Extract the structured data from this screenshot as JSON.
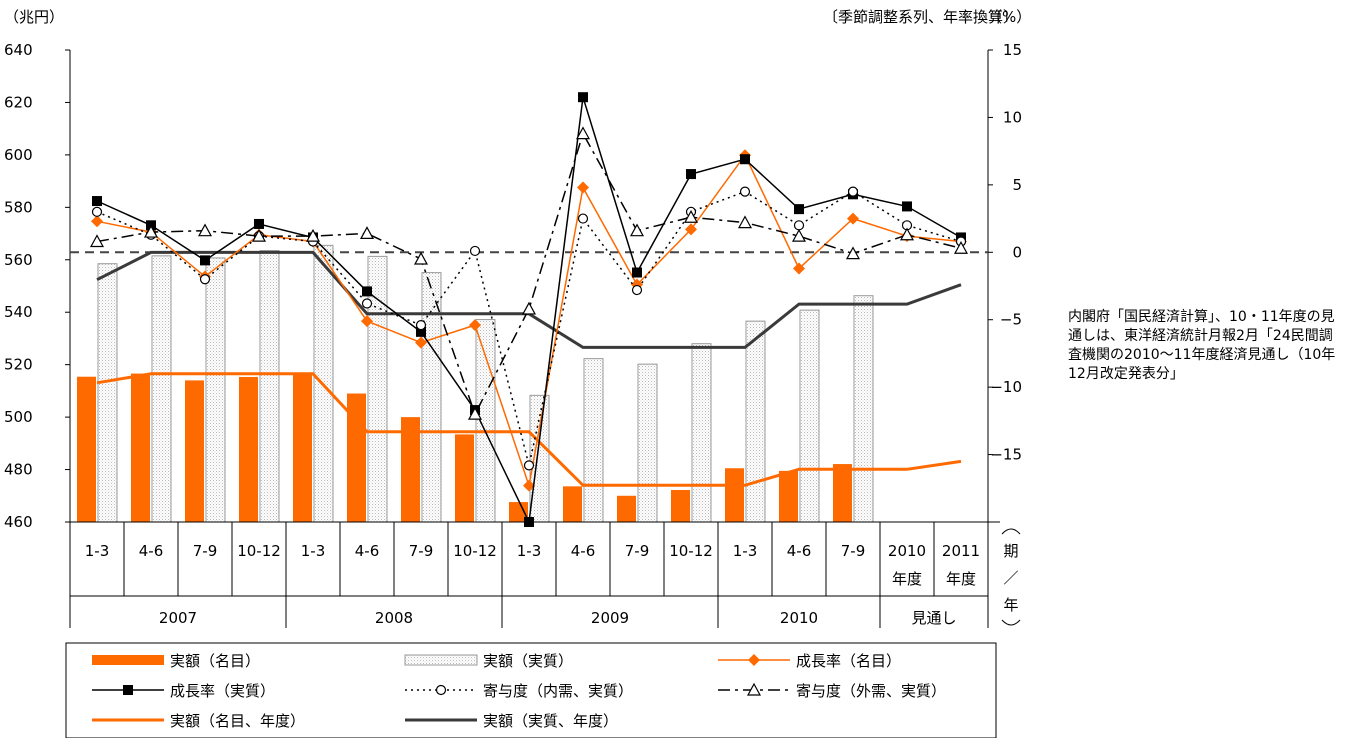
{
  "chart_data": {
    "type": "bar",
    "unit_left": "（兆円）",
    "unit_right": "（%）",
    "subtitle": "〔季節調整系列、年率換算〕",
    "y_left": {
      "min": 460,
      "max": 640,
      "step": 20
    },
    "y_right": {
      "min": -20,
      "max": 15,
      "step": 5,
      "label_min": -15
    },
    "periods": [
      {
        "label": "1-3",
        "year": "2007"
      },
      {
        "label": "4-6",
        "year": "2007"
      },
      {
        "label": "7-9",
        "year": "2007"
      },
      {
        "label": "10-12",
        "year": "2007"
      },
      {
        "label": "1-3",
        "year": "2008"
      },
      {
        "label": "4-6",
        "year": "2008"
      },
      {
        "label": "7-9",
        "year": "2008"
      },
      {
        "label": "10-12",
        "year": "2008"
      },
      {
        "label": "1-3",
        "year": "2009"
      },
      {
        "label": "4-6",
        "year": "2009"
      },
      {
        "label": "7-9",
        "year": "2009"
      },
      {
        "label": "10-12",
        "year": "2009"
      },
      {
        "label": "1-3",
        "year": "2010"
      },
      {
        "label": "4-6",
        "year": "2010"
      },
      {
        "label": "7-9",
        "year": "2010"
      },
      {
        "label": "2010\n年度",
        "year": "見通し"
      },
      {
        "label": "2011\n年度",
        "year": "見通し"
      }
    ],
    "year_groups": [
      {
        "label": "2007",
        "span": 4
      },
      {
        "label": "2008",
        "span": 4
      },
      {
        "label": "2009",
        "span": 4
      },
      {
        "label": "2010",
        "span": 3
      },
      {
        "label": "見通し",
        "span": 2
      }
    ],
    "axis_corner_label": "期／年",
    "series": [
      {
        "name": "実額（名目）",
        "kind": "bar",
        "axis": "left",
        "color": "#FF6A00",
        "values": [
          515.4,
          516.6,
          514.0,
          515.3,
          516.2,
          509.0,
          500.0,
          493.4,
          467.6,
          473.6,
          470.0,
          472.2,
          480.5,
          479.5,
          482.1,
          null,
          null
        ]
      },
      {
        "name": "実額（実質）",
        "kind": "bar",
        "axis": "left",
        "color": "#EEEEEE",
        "values": [
          558.5,
          561.5,
          560.7,
          563.5,
          565.5,
          561.3,
          555.1,
          537.2,
          508.3,
          522.3,
          520.2,
          528.0,
          536.6,
          540.8,
          546.3,
          null,
          null
        ]
      },
      {
        "name": "成長率（名目）",
        "kind": "line",
        "axis": "right",
        "color": "#FF6A00",
        "marker": "diamond",
        "dash": "solid",
        "values": [
          2.3,
          1.5,
          -1.8,
          1.3,
          0.8,
          -5.1,
          -6.7,
          -5.4,
          -17.3,
          4.8,
          -2.4,
          1.7,
          7.2,
          -1.2,
          2.5,
          1.2,
          0.8
        ]
      },
      {
        "name": "成長率（実質）",
        "kind": "line",
        "axis": "right",
        "color": "#000000",
        "marker": "square",
        "dash": "solid",
        "values": [
          3.8,
          2.0,
          -0.6,
          2.1,
          1.1,
          -2.9,
          -5.9,
          -11.7,
          -20.0,
          11.5,
          -1.5,
          5.8,
          6.9,
          3.2,
          4.3,
          3.4,
          1.1
        ]
      },
      {
        "name": "寄与度（内需、実質）",
        "kind": "line",
        "axis": "right",
        "color": "#000000",
        "marker": "circle",
        "dash": "dot",
        "values": [
          3.0,
          1.3,
          -2.0,
          1.2,
          0.8,
          -3.8,
          -5.4,
          0.1,
          -15.8,
          2.5,
          -2.8,
          3.0,
          4.5,
          2.0,
          4.5,
          2.0,
          0.8
        ]
      },
      {
        "name": "寄与度（外需、実質）",
        "kind": "line",
        "axis": "right",
        "color": "#000000",
        "marker": "triangle",
        "dash": "dashdot",
        "values": [
          0.8,
          1.5,
          1.6,
          1.2,
          1.2,
          1.4,
          -0.5,
          -12.0,
          -4.2,
          8.8,
          1.6,
          2.6,
          2.2,
          1.2,
          -0.1,
          1.3,
          0.3
        ]
      },
      {
        "name": "実額（名目、年度）",
        "kind": "step",
        "axis": "left",
        "color": "#FF6A00",
        "values": [
          513.1,
          516.5,
          516.5,
          516.5,
          516.5,
          494.4,
          494.4,
          494.4,
          494.4,
          474.0,
          474.0,
          474.0,
          474.0,
          480.1,
          480.1,
          480.1,
          483.1
        ]
      },
      {
        "name": "実額（実質、年度）",
        "kind": "step",
        "axis": "left",
        "color": "#3A3A3A",
        "values": [
          552.4,
          562.8,
          562.8,
          562.8,
          562.8,
          539.4,
          539.4,
          539.4,
          539.4,
          526.6,
          526.6,
          526.6,
          526.6,
          543.1,
          543.1,
          543.1,
          550.5
        ]
      }
    ],
    "legend_placement": "bottom"
  },
  "note": "内閣府「国民経済計算」、10・11年度の見通しは、東洋経済統計月報2月「24民間調査機関の2010～11年度経済見通し（10年12月改定発表分」"
}
